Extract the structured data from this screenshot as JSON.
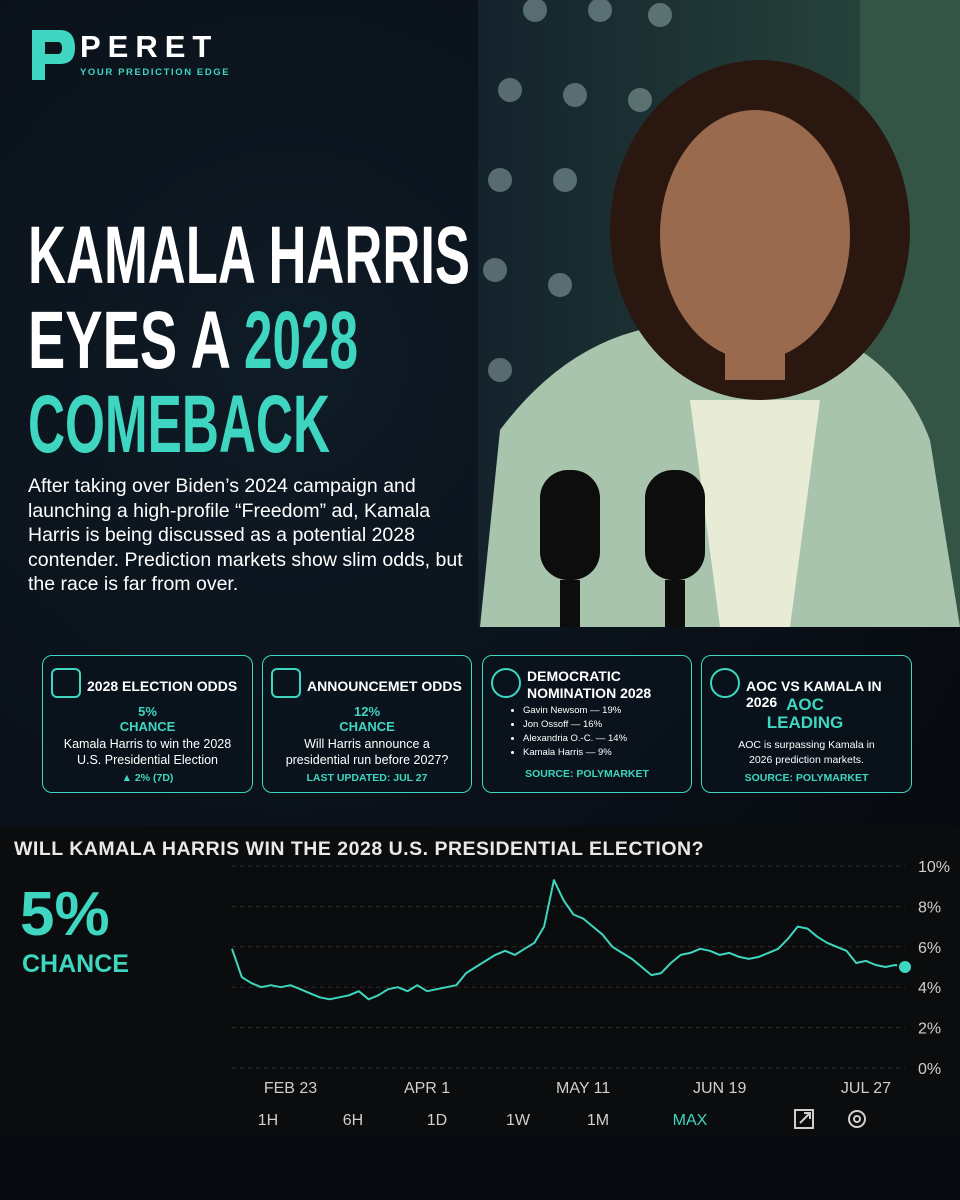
{
  "brand": {
    "name": "PERET",
    "tagline": "YOUR PREDICTION EDGE"
  },
  "headline": {
    "line1": "KAMALA HARRIS",
    "line2": "EYES A",
    "highlight": "2028",
    "line3": "COMEBACK"
  },
  "body": "After taking over Biden’s 2024 campaign and launching a high-profile “Freedom” ad, Kamala Harris is being discussed as a potential 2028 contender. Prediction markets show slim odds, but the race is far from over.",
  "cards": [
    {
      "title": "2028 ELECTION ODDS",
      "value": "5%",
      "label": "CHANCE",
      "text": "Kamala Harris to win the 2028 U.S. Presidential Election",
      "footer": "▲ 2% (7D)"
    },
    {
      "title": "ANNOUNCEMET ODDS",
      "value": "12%",
      "label": "CHANCE",
      "text": "Will Harris announce a presidential run before 2027?",
      "footer": "LAST UPDATED: JUL 27"
    },
    {
      "title": "DEMOCRATIC NOMINATION 2028",
      "items": [
        "Gavin Newsom — 19%",
        "Jon Ossoff — 16%",
        "Alexandria O.-C. — 14%",
        "Kamala Harris — 9%"
      ],
      "footer": "SOURCE: POLYMARKET"
    },
    {
      "title": "AOC VS KAMALA IN 2026",
      "value": "AOC LEADING",
      "text": "AOC is surpassing Kamala in 2026 prediction markets.",
      "footer": "SOURCE: POLYMARKET"
    }
  ],
  "chart_data": {
    "type": "line",
    "title": "WILL KAMALA HARRIS WIN THE 2028 U.S. PRESIDENTIAL ELECTION?",
    "callout": {
      "value": "5%",
      "caption": "CHANCE"
    },
    "color": "#3ed6c0",
    "categories": [
      null,
      null,
      null,
      null,
      null,
      null,
      "FEB 23",
      null,
      null,
      null,
      null,
      null,
      null,
      null,
      null,
      null,
      null,
      null,
      null,
      null,
      "APR 1",
      null,
      null,
      null,
      null,
      null,
      null,
      null,
      null,
      null,
      null,
      null,
      null,
      null,
      null,
      null,
      "MAY 11",
      null,
      null,
      null,
      null,
      null,
      null,
      null,
      null,
      null,
      null,
      null,
      null,
      null,
      "JUN 19",
      null,
      null,
      null,
      null,
      null,
      null,
      null,
      null,
      null,
      null,
      null,
      null,
      null,
      null,
      "JUL 27",
      null,
      null,
      null,
      null
    ],
    "values": [
      5.9,
      4.5,
      4.2,
      4.0,
      4.1,
      4.0,
      4.1,
      3.9,
      3.7,
      3.5,
      3.4,
      3.5,
      3.6,
      3.8,
      3.4,
      3.6,
      3.9,
      4.0,
      3.8,
      4.1,
      3.8,
      3.9,
      4.0,
      4.1,
      4.7,
      5.0,
      5.3,
      5.6,
      5.8,
      5.6,
      5.9,
      6.2,
      7.0,
      9.3,
      8.3,
      7.6,
      7.4,
      7.0,
      6.6,
      6.0,
      5.7,
      5.4,
      5.0,
      4.6,
      4.7,
      5.2,
      5.6,
      5.7,
      5.9,
      5.8,
      5.6,
      5.7,
      5.5,
      5.4,
      5.5,
      5.7,
      5.9,
      6.4,
      7.0,
      6.9,
      6.5,
      6.2,
      6.0,
      5.8,
      5.2,
      5.3,
      5.1,
      5.0,
      5.1,
      5.0
    ],
    "ylim": [
      0,
      10
    ],
    "yticks": [
      {
        "value": 0,
        "label": "0%"
      },
      {
        "value": 2,
        "label": "2%"
      },
      {
        "value": 4,
        "label": "4%"
      },
      {
        "value": 6,
        "label": "6%"
      },
      {
        "value": 8,
        "label": "8%"
      },
      {
        "value": 10,
        "label": "10%"
      }
    ],
    "grid": true,
    "ranges": [
      "1H",
      "6H",
      "1D",
      "1W",
      "1M",
      "MAX"
    ],
    "active_range": 5
  }
}
